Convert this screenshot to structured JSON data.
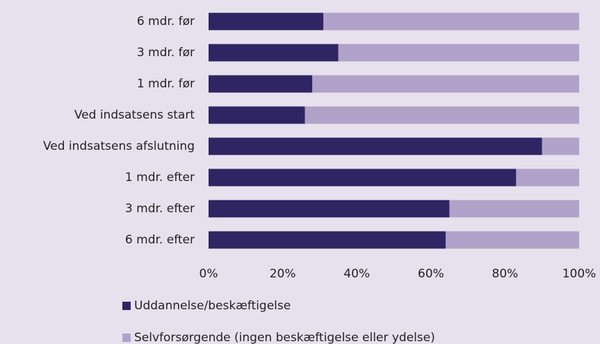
{
  "chart_data": {
    "type": "stacked_bar_horizontal",
    "categories": [
      "6 mdr. før",
      "3 mdr. før",
      "1 mdr. før",
      "Ved indsatsens start",
      "Ved indsatsens afslutning",
      "1 mdr. efter",
      "3 mdr. efter",
      "6 mdr. efter"
    ],
    "series": [
      {
        "name": "Uddannelse/beskæftigelse",
        "color": "#2e2562",
        "values": [
          31,
          35,
          28,
          26,
          90,
          83,
          65,
          64
        ]
      },
      {
        "name": "Selvforsørgende (ingen beskæftigelse eller ydelse)",
        "color": "#b0a2c8",
        "values": [
          69,
          65,
          72,
          74,
          10,
          17,
          35,
          36
        ]
      }
    ],
    "xlim": [
      0,
      100
    ],
    "xticks": [
      {
        "value": 0,
        "label": "0%"
      },
      {
        "value": 20,
        "label": "20%"
      },
      {
        "value": 40,
        "label": "40%"
      },
      {
        "value": 60,
        "label": "60%"
      },
      {
        "value": 80,
        "label": "80%"
      },
      {
        "value": 100,
        "label": "100%"
      }
    ]
  }
}
